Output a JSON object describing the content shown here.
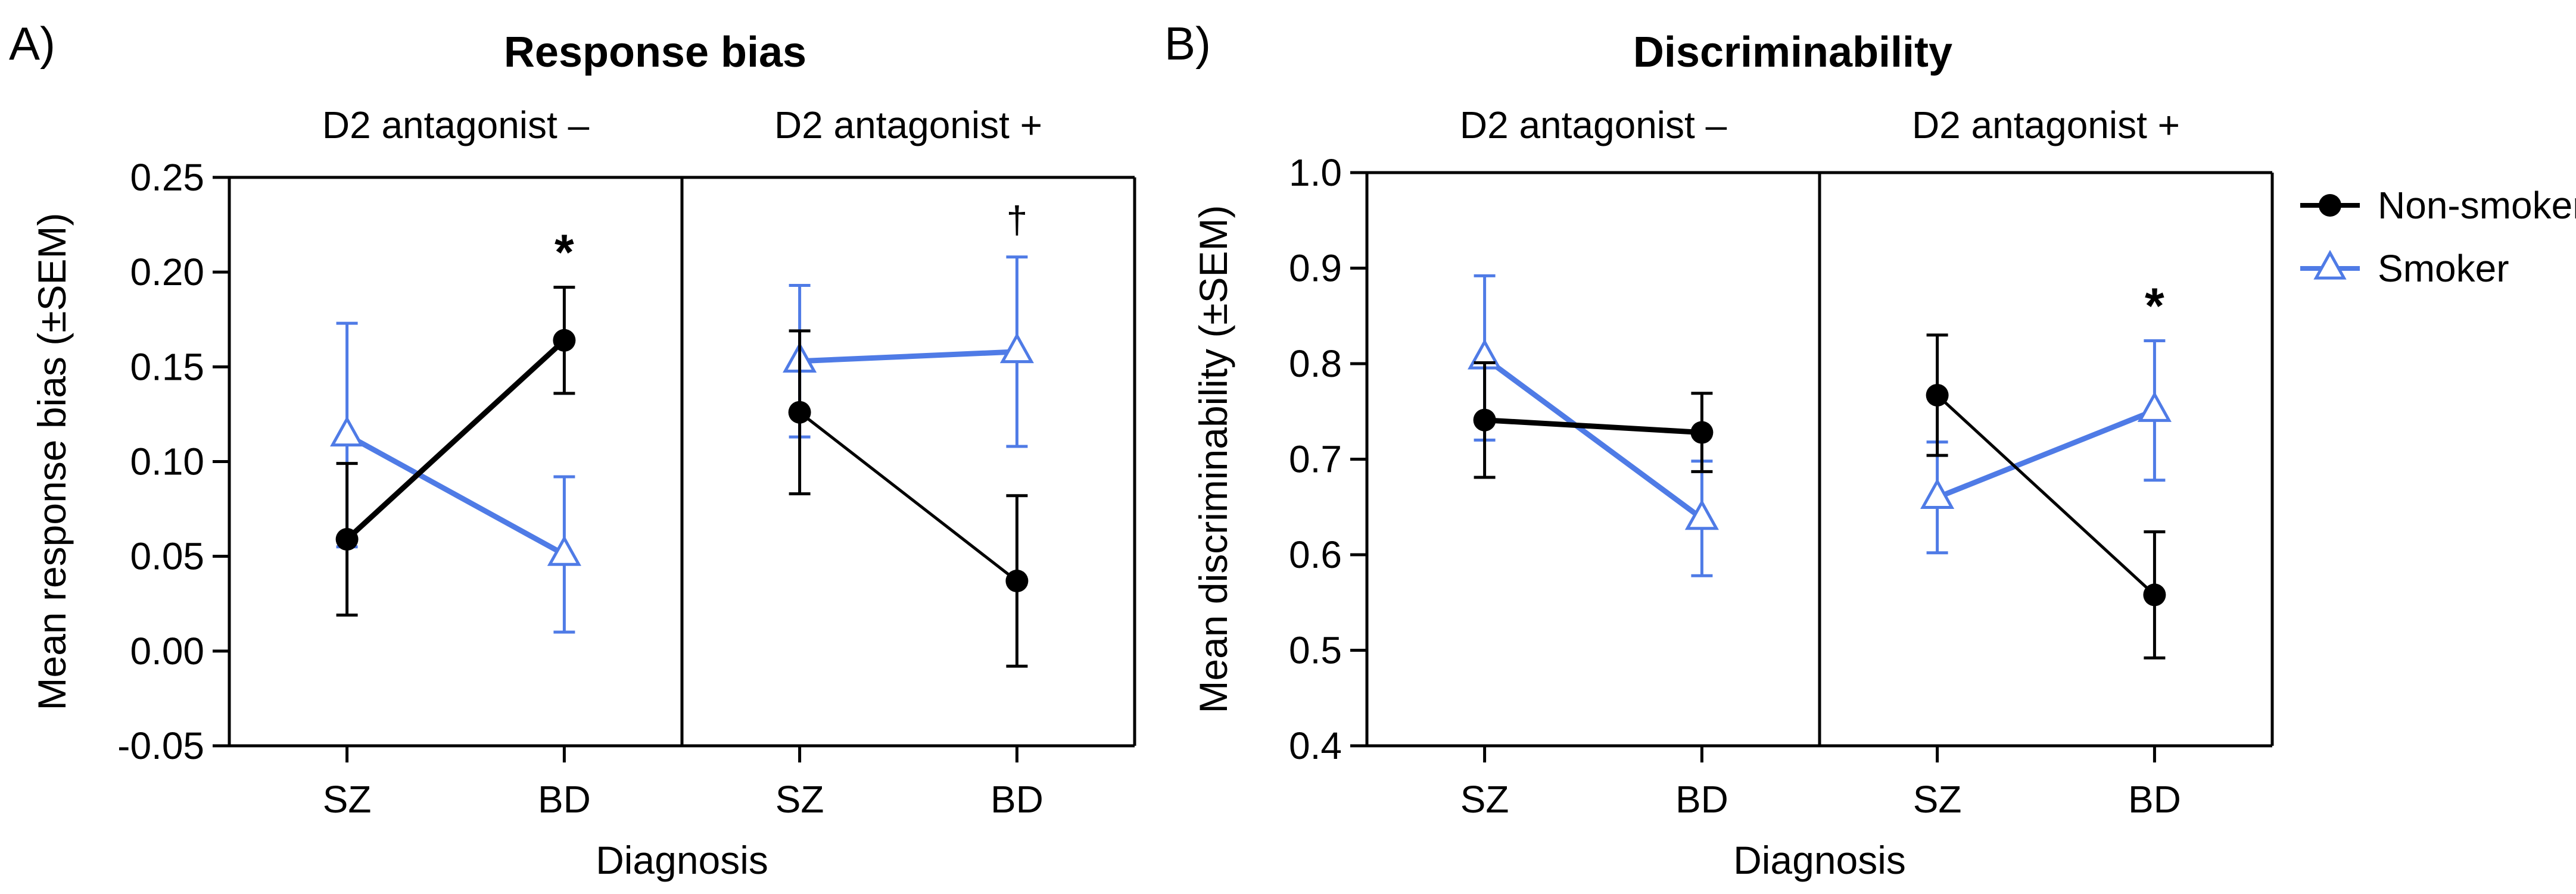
{
  "colors": {
    "non_smoker": "#000000",
    "smoker": "#4F7BE6"
  },
  "legend": [
    {
      "name": "Non-smoker",
      "marker": "circle",
      "color": "#000000"
    },
    {
      "name": "Smoker",
      "marker": "triangle",
      "color": "#4F7BE6"
    }
  ],
  "chart_data": [
    {
      "panel": "A)",
      "type": "line",
      "title": "Response bias",
      "xlabel": "Diagnosis",
      "ylabel": "Mean response bias (±SEM)",
      "ylim": [
        -0.05,
        0.25
      ],
      "yticks": [
        "-0.05",
        "0.00",
        "0.05",
        "0.10",
        "0.15",
        "0.20",
        "0.25"
      ],
      "facets": [
        {
          "label": "D2 antagonist –",
          "categories": [
            "SZ",
            "BD"
          ],
          "series": [
            {
              "name": "Non-smoker",
              "values": [
                0.059,
                0.164
              ],
              "sem": [
                0.04,
                0.028
              ]
            },
            {
              "name": "Smoker",
              "values": [
                0.114,
                0.051
              ],
              "sem": [
                0.059,
                0.041
              ]
            }
          ],
          "annotations": [
            {
              "category": "BD",
              "text": "*"
            }
          ]
        },
        {
          "label": "D2 antagonist +",
          "categories": [
            "SZ",
            "BD"
          ],
          "series": [
            {
              "name": "Non-smoker",
              "values": [
                0.126,
                0.037
              ],
              "sem": [
                0.043,
                0.045
              ]
            },
            {
              "name": "Smoker",
              "values": [
                0.153,
                0.158
              ],
              "sem": [
                0.04,
                0.05
              ]
            }
          ],
          "annotations": [
            {
              "category": "BD",
              "text": "†"
            }
          ]
        }
      ]
    },
    {
      "panel": "B)",
      "type": "line",
      "title": "Discriminability",
      "xlabel": "Diagnosis",
      "ylabel": "Mean discriminability (±SEM)",
      "ylim": [
        0.4,
        1.0
      ],
      "yticks": [
        "0.4",
        "0.5",
        "0.6",
        "0.7",
        "0.8",
        "0.9",
        "1.0"
      ],
      "facets": [
        {
          "label": "D2 antagonist –",
          "categories": [
            "SZ",
            "BD"
          ],
          "series": [
            {
              "name": "Non-smoker",
              "values": [
                0.741,
                0.728
              ],
              "sem": [
                0.06,
                0.041
              ]
            },
            {
              "name": "Smoker",
              "values": [
                0.806,
                0.638
              ],
              "sem": [
                0.086,
                0.06
              ]
            }
          ],
          "annotations": []
        },
        {
          "label": "D2 antagonist +",
          "categories": [
            "SZ",
            "BD"
          ],
          "series": [
            {
              "name": "Non-smoker",
              "values": [
                0.767,
                0.558
              ],
              "sem": [
                0.063,
                0.066
              ]
            },
            {
              "name": "Smoker",
              "values": [
                0.66,
                0.751
              ],
              "sem": [
                0.058,
                0.073
              ]
            }
          ],
          "annotations": [
            {
              "category": "BD",
              "text": "*"
            }
          ]
        }
      ]
    }
  ]
}
